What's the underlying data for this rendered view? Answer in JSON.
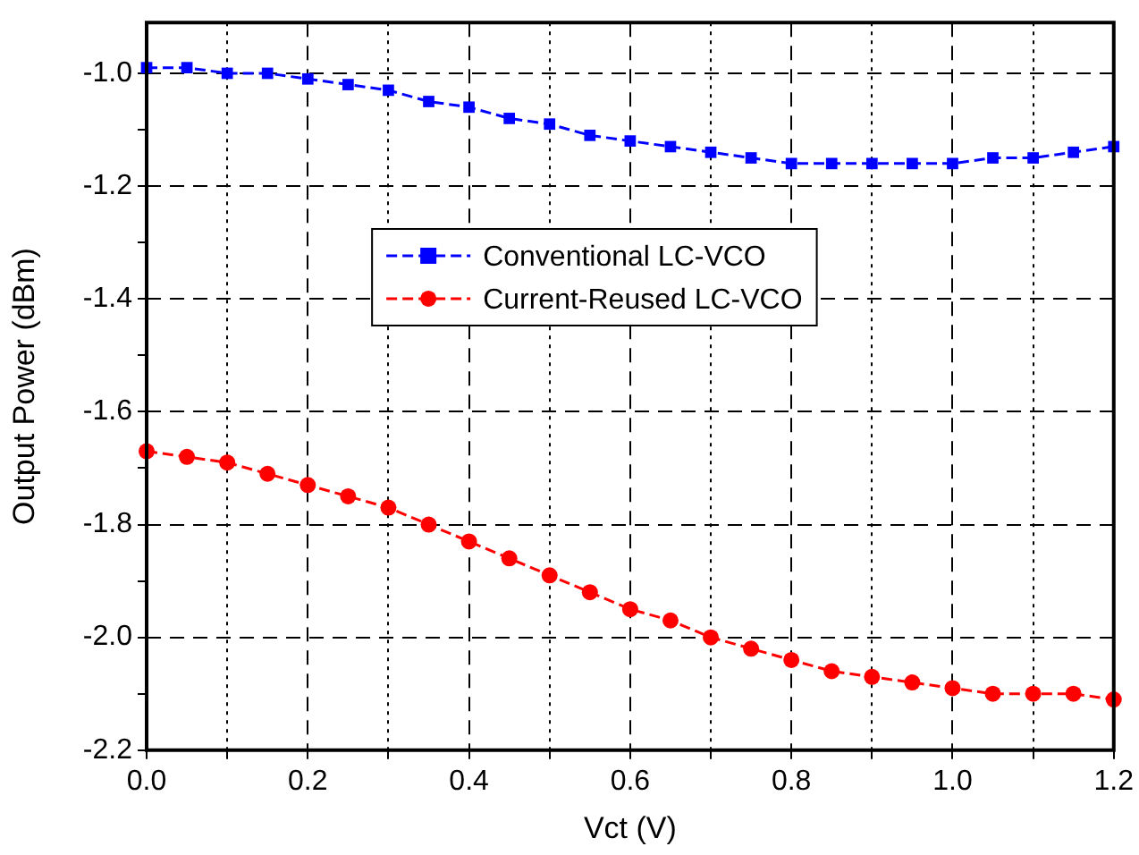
{
  "chart_data": {
    "type": "line",
    "xlabel": "Vct (V)",
    "ylabel": "Output Power (dBm)",
    "x": [
      0,
      0.05,
      0.1,
      0.15,
      0.2,
      0.25,
      0.3,
      0.35,
      0.4,
      0.45,
      0.5,
      0.55,
      0.6,
      0.65,
      0.7,
      0.75,
      0.8,
      0.85,
      0.9,
      0.95,
      1.0,
      1.05,
      1.1,
      1.15,
      1.2
    ],
    "series": [
      {
        "name": "Conventional LC-VCO",
        "color": "#0000ff",
        "marker": "square",
        "values": [
          -0.99,
          -0.99,
          -1.0,
          -1.0,
          -1.01,
          -1.02,
          -1.03,
          -1.05,
          -1.06,
          -1.08,
          -1.09,
          -1.11,
          -1.12,
          -1.13,
          -1.14,
          -1.15,
          -1.16,
          -1.16,
          -1.16,
          -1.16,
          -1.16,
          -1.15,
          -1.15,
          -1.14,
          -1.13
        ]
      },
      {
        "name": "Current-Reused LC-VCO",
        "color": "#ff0000",
        "marker": "circle",
        "values": [
          -1.67,
          -1.68,
          -1.69,
          -1.71,
          -1.73,
          -1.75,
          -1.77,
          -1.8,
          -1.83,
          -1.86,
          -1.89,
          -1.92,
          -1.95,
          -1.97,
          -2.0,
          -2.02,
          -2.04,
          -2.06,
          -2.07,
          -2.08,
          -2.09,
          -2.1,
          -2.1,
          -2.1,
          -2.11
        ]
      }
    ],
    "xlim": [
      0,
      1.2
    ],
    "xticks": [
      {
        "value": 0,
        "label": "0.0"
      },
      {
        "value": 0.1,
        "label": null
      },
      {
        "value": 0.2,
        "label": "0.2"
      },
      {
        "value": 0.3,
        "label": null
      },
      {
        "value": 0.4,
        "label": "0.4"
      },
      {
        "value": 0.5,
        "label": null
      },
      {
        "value": 0.6,
        "label": "0.6"
      },
      {
        "value": 0.7,
        "label": null
      },
      {
        "value": 0.8,
        "label": "0.8"
      },
      {
        "value": 0.9,
        "label": null
      },
      {
        "value": 1.0,
        "label": "1.0"
      },
      {
        "value": 1.1,
        "label": null
      },
      {
        "value": 1.2,
        "label": "1.2"
      }
    ],
    "ylim": [
      -2.2,
      -0.91
    ],
    "yticks": [
      {
        "value": -2.2,
        "label": "-2.2"
      },
      {
        "value": -2.1,
        "label": null
      },
      {
        "value": -2.0,
        "label": "-2.0"
      },
      {
        "value": -1.9,
        "label": null
      },
      {
        "value": -1.8,
        "label": "-1.8"
      },
      {
        "value": -1.7,
        "label": null
      },
      {
        "value": -1.6,
        "label": "-1.6"
      },
      {
        "value": -1.5,
        "label": null
      },
      {
        "value": -1.4,
        "label": "-1.4"
      },
      {
        "value": -1.3,
        "label": null
      },
      {
        "value": -1.2,
        "label": "-1.2"
      },
      {
        "value": -1.1,
        "label": null
      },
      {
        "value": -1.0,
        "label": "-1.0"
      }
    ],
    "grid": true,
    "legend": "center",
    "line_style": "dashed"
  }
}
